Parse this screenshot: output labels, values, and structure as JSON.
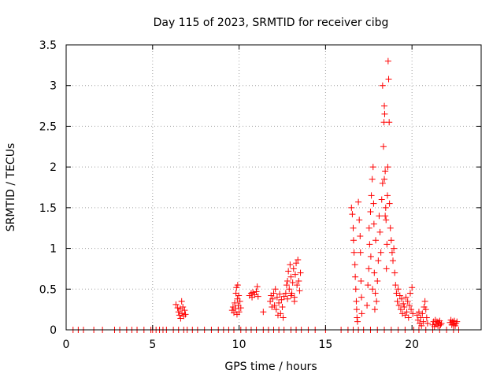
{
  "chart_data": {
    "type": "scatter",
    "title": "Day 115 of 2023, SRMTID for receiver cibg",
    "xlabel": "GPS time / hours",
    "ylabel": "SRMTID / TECUs",
    "xlim": [
      0,
      24
    ],
    "ylim": [
      0,
      3.5
    ],
    "x_ticks": [
      0,
      5,
      10,
      15,
      20
    ],
    "x_tick_labels": [
      "0",
      "5",
      "10",
      "15",
      "20"
    ],
    "y_ticks": [
      0,
      0.5,
      1,
      1.5,
      2,
      2.5,
      3,
      3.5
    ],
    "y_tick_labels": [
      "0",
      "0.5",
      "1",
      "1.5",
      "2",
      "2.5",
      "3",
      "3.5"
    ],
    "grid": true,
    "marker": "+",
    "marker_color": "#ff0000",
    "series": [
      {
        "name": "SRMTID",
        "points": [
          [
            0.4,
            0
          ],
          [
            0.7,
            0
          ],
          [
            1.0,
            0
          ],
          [
            1.6,
            0
          ],
          [
            2.1,
            0
          ],
          [
            2.8,
            0
          ],
          [
            3.1,
            0
          ],
          [
            3.5,
            0
          ],
          [
            3.8,
            0
          ],
          [
            4.1,
            0
          ],
          [
            4.5,
            0
          ],
          [
            4.9,
            0
          ],
          [
            5.0,
            0
          ],
          [
            5.2,
            0
          ],
          [
            5.4,
            0
          ],
          [
            5.6,
            0
          ],
          [
            5.8,
            0
          ],
          [
            6.2,
            0
          ],
          [
            6.5,
            0
          ],
          [
            6.8,
            0
          ],
          [
            7.0,
            0
          ],
          [
            7.3,
            0
          ],
          [
            7.6,
            0
          ],
          [
            8.0,
            0
          ],
          [
            8.4,
            0
          ],
          [
            8.8,
            0
          ],
          [
            9.1,
            0
          ],
          [
            9.4,
            0
          ],
          [
            9.7,
            0
          ],
          [
            10.1,
            0
          ],
          [
            10.4,
            0
          ],
          [
            10.7,
            0
          ],
          [
            11.0,
            0
          ],
          [
            11.4,
            0
          ],
          [
            11.7,
            0
          ],
          [
            12.0,
            0
          ],
          [
            12.3,
            0
          ],
          [
            12.6,
            0
          ],
          [
            13.0,
            0
          ],
          [
            13.3,
            0
          ],
          [
            13.6,
            0
          ],
          [
            14.0,
            0
          ],
          [
            14.4,
            0
          ],
          [
            15.0,
            0
          ],
          [
            15.9,
            0
          ],
          [
            16.3,
            0
          ],
          [
            16.6,
            0
          ],
          [
            16.9,
            0
          ],
          [
            17.2,
            0
          ],
          [
            17.6,
            0
          ],
          [
            18.0,
            0
          ],
          [
            18.4,
            0
          ],
          [
            18.8,
            0
          ],
          [
            19.2,
            0
          ],
          [
            19.6,
            0
          ],
          [
            20.1,
            0
          ],
          [
            20.4,
            0
          ],
          [
            20.8,
            0
          ],
          [
            21.2,
            0
          ],
          [
            21.6,
            0
          ],
          [
            22.0,
            0
          ],
          [
            22.4,
            0
          ],
          [
            22.7,
            0
          ],
          [
            6.35,
            0.31
          ],
          [
            6.45,
            0.27
          ],
          [
            6.5,
            0.22
          ],
          [
            6.55,
            0.18
          ],
          [
            6.6,
            0.26
          ],
          [
            6.62,
            0.14
          ],
          [
            6.68,
            0.35
          ],
          [
            6.7,
            0.2
          ],
          [
            6.75,
            0.28
          ],
          [
            6.8,
            0.17
          ],
          [
            6.85,
            0.24
          ],
          [
            6.9,
            0.19
          ],
          [
            9.6,
            0.24
          ],
          [
            9.65,
            0.28
          ],
          [
            9.7,
            0.21
          ],
          [
            9.75,
            0.33
          ],
          [
            9.8,
            0.26
          ],
          [
            9.82,
            0.45
          ],
          [
            9.85,
            0.52
          ],
          [
            9.88,
            0.19
          ],
          [
            9.9,
            0.38
          ],
          [
            9.92,
            0.55
          ],
          [
            9.95,
            0.3
          ],
          [
            9.98,
            0.42
          ],
          [
            10.0,
            0.22
          ],
          [
            10.05,
            0.35
          ],
          [
            10.1,
            0.27
          ],
          [
            10.6,
            0.42
          ],
          [
            10.7,
            0.45
          ],
          [
            10.75,
            0.4
          ],
          [
            10.8,
            0.46
          ],
          [
            10.9,
            0.43
          ],
          [
            11.0,
            0.47
          ],
          [
            11.05,
            0.53
          ],
          [
            11.1,
            0.41
          ],
          [
            11.4,
            0.22
          ],
          [
            11.8,
            0.35
          ],
          [
            11.85,
            0.42
          ],
          [
            11.9,
            0.28
          ],
          [
            11.95,
            0.38
          ],
          [
            12.0,
            0.45
          ],
          [
            12.05,
            0.3
          ],
          [
            12.1,
            0.5
          ],
          [
            12.15,
            0.25
          ],
          [
            12.2,
            0.4
          ],
          [
            12.25,
            0.18
          ],
          [
            12.3,
            0.33
          ],
          [
            12.35,
            0.44
          ],
          [
            12.4,
            0.2
          ],
          [
            12.45,
            0.37
          ],
          [
            12.5,
            0.28
          ],
          [
            12.55,
            0.15
          ],
          [
            12.6,
            0.41
          ],
          [
            12.7,
            0.45
          ],
          [
            12.75,
            0.55
          ],
          [
            12.8,
            0.6
          ],
          [
            12.85,
            0.72
          ],
          [
            12.9,
            0.5
          ],
          [
            12.95,
            0.8
          ],
          [
            13.0,
            0.65
          ],
          [
            13.05,
            0.45
          ],
          [
            13.1,
            0.58
          ],
          [
            13.15,
            0.75
          ],
          [
            13.2,
            0.4
          ],
          [
            13.25,
            0.68
          ],
          [
            13.3,
            0.82
          ],
          [
            13.35,
            0.55
          ],
          [
            13.4,
            0.86
          ],
          [
            13.45,
            0.6
          ],
          [
            13.5,
            0.48
          ],
          [
            13.55,
            0.7
          ],
          [
            12.8,
            0.38
          ],
          [
            13.0,
            0.42
          ],
          [
            13.2,
            0.35
          ],
          [
            16.5,
            1.5
          ],
          [
            16.55,
            1.42
          ],
          [
            16.6,
            1.25
          ],
          [
            16.62,
            1.1
          ],
          [
            16.65,
            0.95
          ],
          [
            16.7,
            0.8
          ],
          [
            16.72,
            0.65
          ],
          [
            16.75,
            0.5
          ],
          [
            16.78,
            0.35
          ],
          [
            16.8,
            0.25
          ],
          [
            16.82,
            0.15
          ],
          [
            16.85,
            0.1
          ],
          [
            16.9,
            1.57
          ],
          [
            16.95,
            1.35
          ],
          [
            17.0,
            1.15
          ],
          [
            17.02,
            0.95
          ],
          [
            17.05,
            0.6
          ],
          [
            17.08,
            0.4
          ],
          [
            17.1,
            0.2
          ],
          [
            17.4,
            0.3
          ],
          [
            17.45,
            0.55
          ],
          [
            17.5,
            0.75
          ],
          [
            17.52,
            1.25
          ],
          [
            17.55,
            1.05
          ],
          [
            17.6,
            1.45
          ],
          [
            17.62,
            0.9
          ],
          [
            17.65,
            1.65
          ],
          [
            17.7,
            1.85
          ],
          [
            17.72,
            0.5
          ],
          [
            17.75,
            2.0
          ],
          [
            17.78,
            1.55
          ],
          [
            17.8,
            1.3
          ],
          [
            17.82,
            0.7
          ],
          [
            17.85,
            0.25
          ],
          [
            17.88,
            0.45
          ],
          [
            17.9,
            1.1
          ],
          [
            17.95,
            0.35
          ],
          [
            18.0,
            0.6
          ],
          [
            18.05,
            0.85
          ],
          [
            18.1,
            1.4
          ],
          [
            18.15,
            1.2
          ],
          [
            18.2,
            0.95
          ],
          [
            18.25,
            1.6
          ],
          [
            18.3,
            1.8
          ],
          [
            18.35,
            2.25
          ],
          [
            18.38,
            2.55
          ],
          [
            18.4,
            2.75
          ],
          [
            18.42,
            2.65
          ],
          [
            18.45,
            1.95
          ],
          [
            18.48,
            1.5
          ],
          [
            18.5,
            1.35
          ],
          [
            18.52,
            0.75
          ],
          [
            18.55,
            1.05
          ],
          [
            18.58,
            1.65
          ],
          [
            18.6,
            2.0
          ],
          [
            18.62,
            3.3
          ],
          [
            18.65,
            3.08
          ],
          [
            18.68,
            2.55
          ],
          [
            18.7,
            1.55
          ],
          [
            18.3,
            3.0
          ],
          [
            18.4,
            1.85
          ],
          [
            18.45,
            1.4
          ],
          [
            18.75,
            1.25
          ],
          [
            18.8,
            1.1
          ],
          [
            18.85,
            0.95
          ],
          [
            18.9,
            0.85
          ],
          [
            18.95,
            1.0
          ],
          [
            19.0,
            0.7
          ],
          [
            19.05,
            0.55
          ],
          [
            19.1,
            0.45
          ],
          [
            19.15,
            0.35
          ],
          [
            19.2,
            0.5
          ],
          [
            19.25,
            0.3
          ],
          [
            19.3,
            0.42
          ],
          [
            19.35,
            0.25
          ],
          [
            19.4,
            0.38
          ],
          [
            19.45,
            0.2
          ],
          [
            19.5,
            0.32
          ],
          [
            19.55,
            0.28
          ],
          [
            19.6,
            0.18
          ],
          [
            19.65,
            0.4
          ],
          [
            19.7,
            0.22
          ],
          [
            19.75,
            0.35
          ],
          [
            19.8,
            0.15
          ],
          [
            19.85,
            0.3
          ],
          [
            19.9,
            0.45
          ],
          [
            19.95,
            0.25
          ],
          [
            20.0,
            0.52
          ],
          [
            20.05,
            0.2
          ],
          [
            20.3,
            0.18
          ],
          [
            20.35,
            0.12
          ],
          [
            20.4,
            0.22
          ],
          [
            20.45,
            0.08
          ],
          [
            20.5,
            0.15
          ],
          [
            20.55,
            0.05
          ],
          [
            20.6,
            0.2
          ],
          [
            20.65,
            0.1
          ],
          [
            20.7,
            0.28
          ],
          [
            20.75,
            0.35
          ],
          [
            20.8,
            0.25
          ],
          [
            20.85,
            0.15
          ],
          [
            20.9,
            0.08
          ],
          [
            21.2,
            0.06
          ],
          [
            21.25,
            0.1
          ],
          [
            21.3,
            0.04
          ],
          [
            21.35,
            0.12
          ],
          [
            21.4,
            0.07
          ],
          [
            21.45,
            0.1
          ],
          [
            21.5,
            0.05
          ],
          [
            21.55,
            0.09
          ],
          [
            21.6,
            0.11
          ],
          [
            21.65,
            0.06
          ],
          [
            21.7,
            0.08
          ],
          [
            22.2,
            0.09
          ],
          [
            22.25,
            0.12
          ],
          [
            22.3,
            0.06
          ],
          [
            22.35,
            0.1
          ],
          [
            22.4,
            0.07
          ],
          [
            22.45,
            0.11
          ],
          [
            22.5,
            0.05
          ],
          [
            22.55,
            0.08
          ],
          [
            22.6,
            0.1
          ]
        ]
      }
    ]
  }
}
